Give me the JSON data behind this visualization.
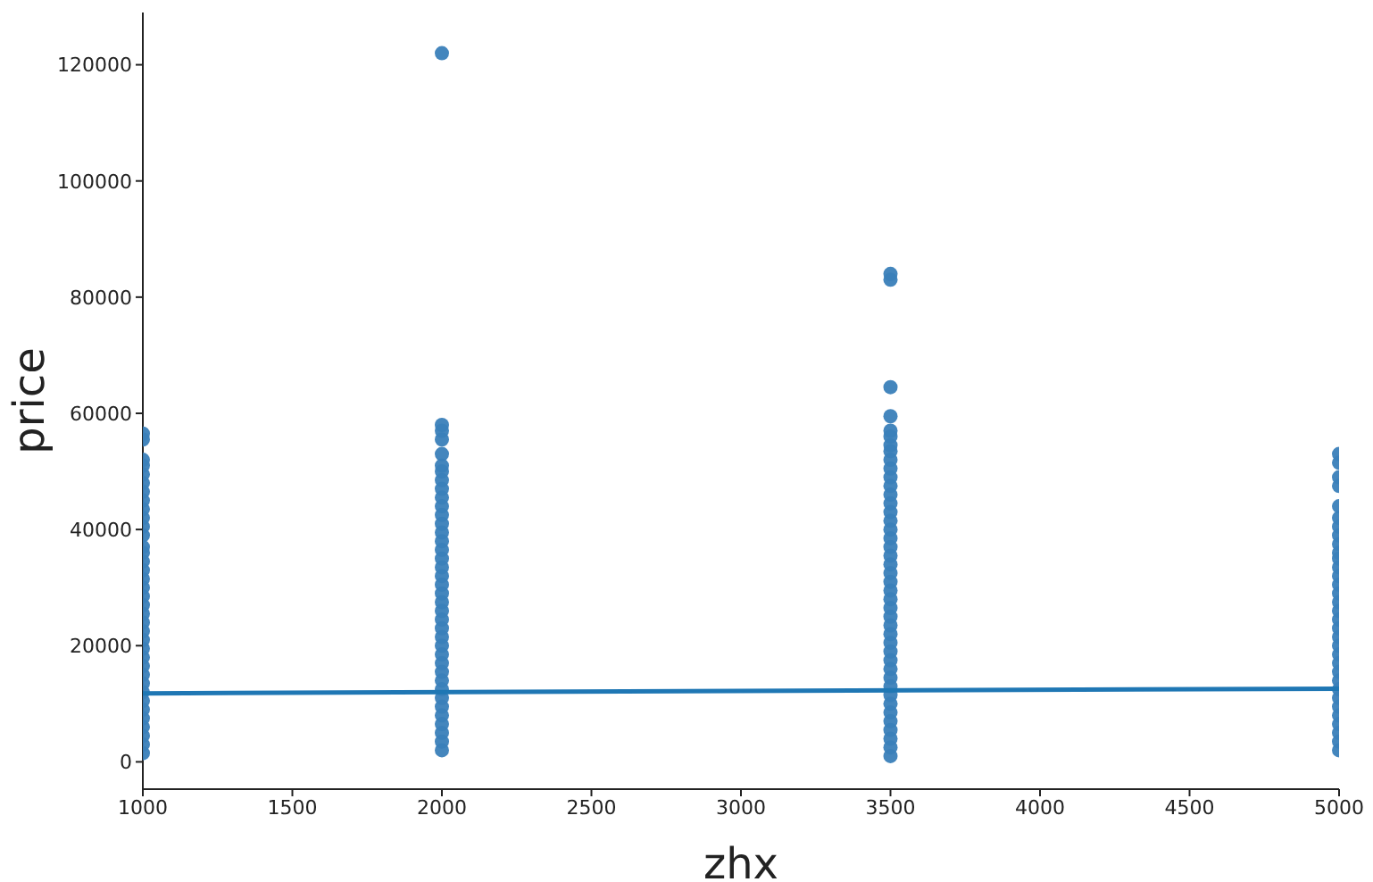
{
  "chart_data": {
    "type": "scatter",
    "xlabel": "zhx",
    "ylabel": "price",
    "xlim": [
      1000,
      5000
    ],
    "ylim": [
      -4700,
      129000
    ],
    "xticks": [
      1000,
      1500,
      2000,
      2500,
      3000,
      3500,
      4000,
      4500,
      5000
    ],
    "yticks": [
      0,
      20000,
      40000,
      60000,
      80000,
      100000,
      120000
    ],
    "series": [
      {
        "marker": "circle",
        "color": "#3a80b9",
        "x": [
          1000,
          1000,
          1000,
          1000,
          1000,
          1000,
          1000,
          1000,
          1000,
          1000,
          1000,
          1000,
          1000,
          1000,
          1000,
          1000,
          1000,
          1000,
          1000,
          1000,
          1000,
          1000,
          1000,
          1000,
          1000,
          1000,
          1000,
          1000,
          1000,
          1000,
          1000,
          1000,
          1000,
          1000,
          1000,
          1000,
          1000,
          2000,
          2000,
          2000,
          2000,
          2000,
          2000,
          2000,
          2000,
          2000,
          2000,
          2000,
          2000,
          2000,
          2000,
          2000,
          2000,
          2000,
          2000,
          2000,
          2000,
          2000,
          2000,
          2000,
          2000,
          2000,
          2000,
          2000,
          2000,
          2000,
          2000,
          2000,
          2000,
          2000,
          2000,
          2000,
          2000,
          2000,
          2000,
          2000,
          3500,
          3500,
          3500,
          3500,
          3500,
          3500,
          3500,
          3500,
          3500,
          3500,
          3500,
          3500,
          3500,
          3500,
          3500,
          3500,
          3500,
          3500,
          3500,
          3500,
          3500,
          3500,
          3500,
          3500,
          3500,
          3500,
          3500,
          3500,
          3500,
          3500,
          3500,
          3500,
          3500,
          3500,
          3500,
          3500,
          3500,
          3500,
          3500,
          3500,
          3500,
          3500,
          3500,
          5000,
          5000,
          5000,
          5000,
          5000,
          5000,
          5000,
          5000,
          5000,
          5000,
          5000,
          5000,
          5000,
          5000,
          5000,
          5000,
          5000,
          5000,
          5000,
          5000,
          5000,
          5000,
          5000,
          5000,
          5000,
          5000,
          5000,
          5000,
          5000,
          5000,
          5000,
          5000,
          5000
        ],
        "values": [
          1500,
          3000,
          4500,
          6000,
          7500,
          9000,
          10500,
          12000,
          13500,
          15000,
          16500,
          18000,
          19500,
          21000,
          22500,
          24000,
          25500,
          27000,
          28500,
          30000,
          31500,
          33000,
          34500,
          36000,
          37000,
          39000,
          40500,
          42000,
          43500,
          45000,
          46500,
          48000,
          49500,
          51000,
          52000,
          55500,
          56500,
          2000,
          3500,
          5000,
          6500,
          8000,
          9500,
          11000,
          12500,
          14000,
          15500,
          17000,
          18500,
          20000,
          21500,
          23000,
          24500,
          26000,
          27500,
          29000,
          30500,
          32000,
          33500,
          35000,
          36500,
          38000,
          39500,
          41000,
          42500,
          44000,
          45500,
          47000,
          48500,
          50000,
          51000,
          53000,
          55500,
          57000,
          58000,
          122000,
          1000,
          2500,
          4000,
          5500,
          7000,
          8500,
          10000,
          11500,
          13000,
          14500,
          16000,
          17500,
          19000,
          20500,
          22000,
          23500,
          25000,
          26500,
          28000,
          29500,
          31000,
          32500,
          34000,
          35500,
          37000,
          38500,
          40000,
          41500,
          43000,
          44500,
          46000,
          47500,
          49000,
          50500,
          52000,
          53500,
          54500,
          56000,
          57000,
          59500,
          64500,
          83000,
          84000,
          2000,
          3500,
          5000,
          6500,
          8000,
          9500,
          11000,
          12500,
          14000,
          15500,
          17000,
          18500,
          20000,
          21500,
          23000,
          24500,
          26000,
          27500,
          29000,
          30500,
          32000,
          33500,
          35000,
          36000,
          37500,
          39000,
          40500,
          42000,
          44000,
          47500,
          49000,
          51500,
          53000
        ]
      },
      {
        "type": "line",
        "color": "#1f77b4",
        "x": [
          1000,
          5000
        ],
        "values": [
          11800,
          12600
        ]
      }
    ]
  }
}
